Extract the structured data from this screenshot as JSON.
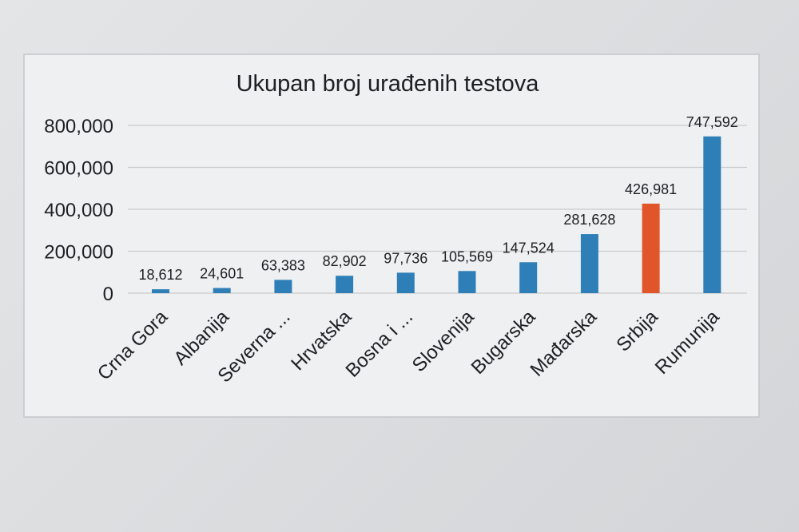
{
  "chart_data": {
    "type": "bar",
    "title": "Ukupan broj urađenih testova",
    "xlabel": "",
    "ylabel": "",
    "categories": [
      "Crna Gora",
      "Albanija",
      "Severna ...",
      "Hrvatska",
      "Bosna i ...",
      "Slovenija",
      "Bugarska",
      "Mađarska",
      "Srbija",
      "Rumunija"
    ],
    "values": [
      18612,
      24601,
      63383,
      82902,
      97736,
      105569,
      147524,
      281628,
      426981,
      747592
    ],
    "value_labels": [
      "18,612",
      "24,601",
      "63,383",
      "82,902",
      "97,736",
      "105,569",
      "147,524",
      "281,628",
      "426,981",
      "747,592"
    ],
    "y_ticks": [
      0,
      200000,
      400000,
      600000,
      800000
    ],
    "y_tick_labels": [
      "0",
      "200,000",
      "400,000",
      "600,000",
      "800,000"
    ],
    "ylim": [
      0,
      800000
    ],
    "grid": true,
    "legend": "none",
    "colors": {
      "bar_default": "#2e7fb8",
      "bar_highlight": "#e0562a",
      "highlight_category": "Srbija",
      "frame": "#f0f1f2",
      "gridline": "#c9cacc",
      "text": "#1d1f22"
    }
  }
}
